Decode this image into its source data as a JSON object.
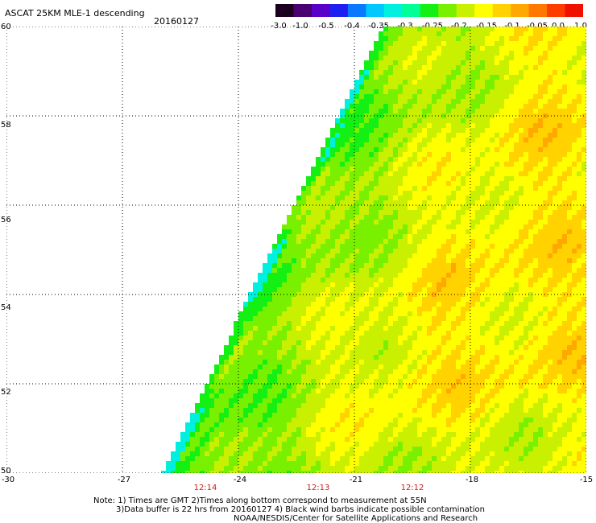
{
  "title": "ASCAT 25KM MLE-1 descending",
  "date": "20160127",
  "colorbar": {
    "ticks": [
      "-3.0",
      "-1.0",
      "-0.5",
      "-0.4",
      "-0.35",
      "-0.3",
      "-0.25",
      "-0.2",
      "-0.15",
      "-0.1",
      "-0.05",
      "0.0",
      "1.0"
    ],
    "colors": [
      "#1a001e",
      "#4a0070",
      "#5a00c8",
      "#1e1ef0",
      "#0a78ff",
      "#00c8ff",
      "#00f0e0",
      "#00ff96",
      "#14f014",
      "#78f000",
      "#c8f000",
      "#ffff00",
      "#ffd200",
      "#ffa800",
      "#ff7800",
      "#ff3c00",
      "#f01000"
    ]
  },
  "map": {
    "lat_labels": [
      "60",
      "58",
      "56",
      "54",
      "52",
      "50"
    ],
    "lon_labels": [
      "-30",
      "-27",
      "-24",
      "-21",
      "-18",
      "-15"
    ],
    "lon_range": [
      -30,
      -15
    ],
    "lat_range": [
      50,
      60
    ],
    "time_labels": [
      "12:14",
      "12:13",
      "12:12"
    ]
  },
  "notes": {
    "line1": "Note: 1) Times are GMT 2)Times along bottom correspond to measurement at 55N",
    "line2": "3)Data buffer is 22 hrs from 20160127 4) Black wind barbs indicate possible contamination",
    "line3": "NOAA/NESDIS/Center for Satellite Applications and Research"
  }
}
